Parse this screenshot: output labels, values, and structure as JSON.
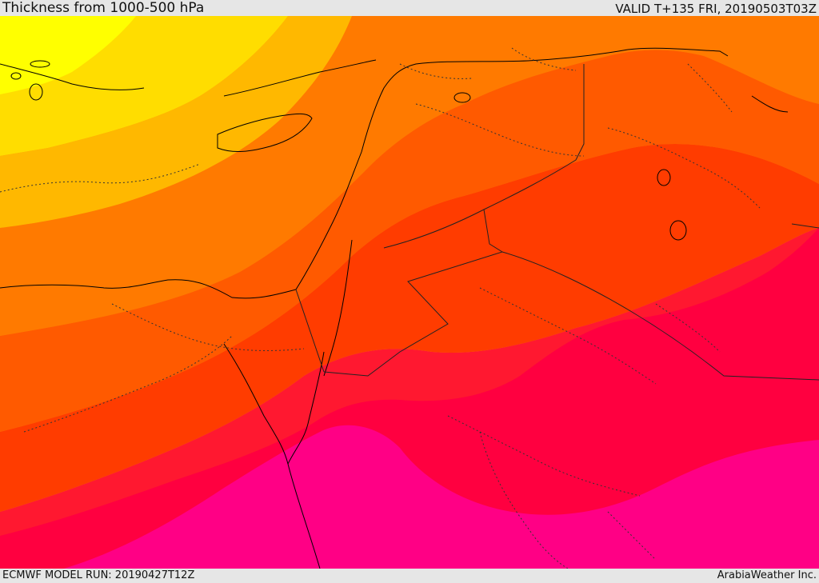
{
  "header": {
    "title": "Thickness from 1000-500 hPa",
    "valid_time": "VALID T+135 FRI, 20190503T03Z"
  },
  "footer": {
    "model_run": "ECMWF MODEL RUN: 20190427T12Z",
    "credit": "ArabiaWeather Inc."
  },
  "colors": {
    "band_yellow": "#ffff00",
    "band_gold": "#ffdd00",
    "band_amber": "#ffb800",
    "band_orange_light": "#ff9a00",
    "band_orange": "#ff7a00",
    "band_orange_red": "#ff5a00",
    "band_red_orange": "#ff3c00",
    "band_red": "#ff1830",
    "band_crimson": "#ff0040",
    "band_magenta": "#ff0085",
    "coastline": "#000000",
    "border": "#222222"
  }
}
